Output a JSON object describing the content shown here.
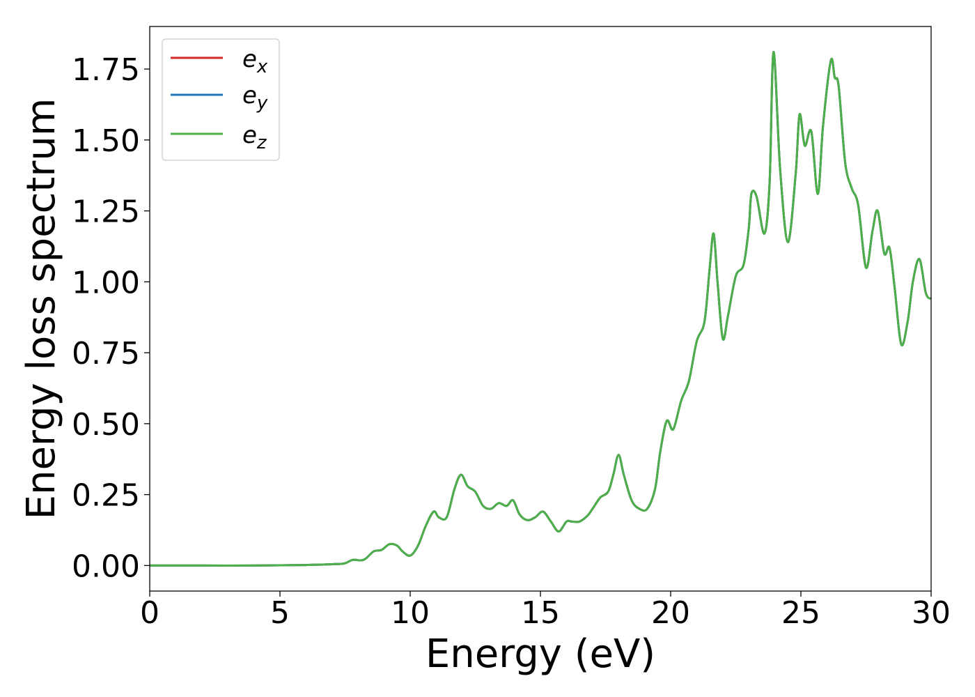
{
  "chart_data": {
    "type": "line",
    "title": "",
    "xlabel": "Energy (eV)",
    "ylabel": "Energy loss spectrum",
    "xlim": [
      0,
      30
    ],
    "ylim": [
      -0.09,
      1.9
    ],
    "xticks": [
      0,
      5,
      10,
      15,
      20,
      25,
      30
    ],
    "xtick_labels": [
      "0",
      "5",
      "10",
      "15",
      "20",
      "25",
      "30"
    ],
    "yticks": [
      0.0,
      0.25,
      0.5,
      0.75,
      1.0,
      1.25,
      1.5,
      1.75
    ],
    "ytick_labels": [
      "0.00",
      "0.25",
      "0.50",
      "0.75",
      "1.00",
      "1.25",
      "1.50",
      "1.75"
    ],
    "grid": false,
    "legend_position": "top-left",
    "series": [
      {
        "name": "e",
        "subscript": "x",
        "color": "#d62728"
      },
      {
        "name": "e",
        "subscript": "y",
        "color": "#1f77b4"
      },
      {
        "name": "e",
        "subscript": "z",
        "color": "#4daf4a"
      }
    ],
    "x": [
      0,
      2,
      4,
      6,
      7.2,
      7.5,
      7.8,
      8.1,
      8.3,
      8.6,
      8.9,
      9.2,
      9.5,
      9.7,
      10.0,
      10.3,
      10.6,
      10.9,
      11.1,
      11.4,
      11.7,
      11.95,
      12.2,
      12.5,
      12.8,
      13.1,
      13.4,
      13.7,
      13.95,
      14.2,
      14.5,
      14.8,
      15.1,
      15.4,
      15.7,
      16.0,
      16.2,
      16.5,
      16.8,
      17.0,
      17.3,
      17.6,
      17.8,
      18.0,
      18.2,
      18.5,
      18.8,
      19.1,
      19.4,
      19.6,
      19.85,
      20.1,
      20.4,
      20.7,
      21.0,
      21.3,
      21.5,
      21.65,
      21.8,
      22.0,
      22.2,
      22.5,
      22.8,
      23.0,
      23.1,
      23.3,
      23.6,
      23.8,
      23.95,
      24.2,
      24.5,
      24.8,
      24.95,
      25.15,
      25.4,
      25.65,
      25.85,
      26.15,
      26.3,
      26.45,
      26.7,
      26.95,
      27.2,
      27.5,
      27.75,
      27.95,
      28.2,
      28.4,
      28.6,
      28.85,
      29.1,
      29.3,
      29.55,
      29.8,
      30.0
    ],
    "values": [
      0,
      0,
      0,
      0.002,
      0.005,
      0.008,
      0.02,
      0.018,
      0.025,
      0.05,
      0.055,
      0.075,
      0.07,
      0.05,
      0.035,
      0.07,
      0.14,
      0.19,
      0.17,
      0.17,
      0.27,
      0.32,
      0.28,
      0.26,
      0.21,
      0.2,
      0.22,
      0.21,
      0.23,
      0.18,
      0.16,
      0.17,
      0.19,
      0.155,
      0.12,
      0.155,
      0.155,
      0.155,
      0.175,
      0.2,
      0.24,
      0.26,
      0.32,
      0.39,
      0.32,
      0.23,
      0.2,
      0.2,
      0.27,
      0.4,
      0.51,
      0.48,
      0.58,
      0.65,
      0.79,
      0.86,
      1.05,
      1.17,
      1.0,
      0.8,
      0.88,
      1.02,
      1.06,
      1.19,
      1.31,
      1.3,
      1.17,
      1.35,
      1.81,
      1.4,
      1.14,
      1.38,
      1.59,
      1.48,
      1.53,
      1.31,
      1.55,
      1.78,
      1.72,
      1.69,
      1.42,
      1.33,
      1.27,
      1.05,
      1.18,
      1.25,
      1.1,
      1.12,
      0.98,
      0.78,
      0.86,
      1.0,
      1.08,
      0.96,
      0.94
    ]
  }
}
